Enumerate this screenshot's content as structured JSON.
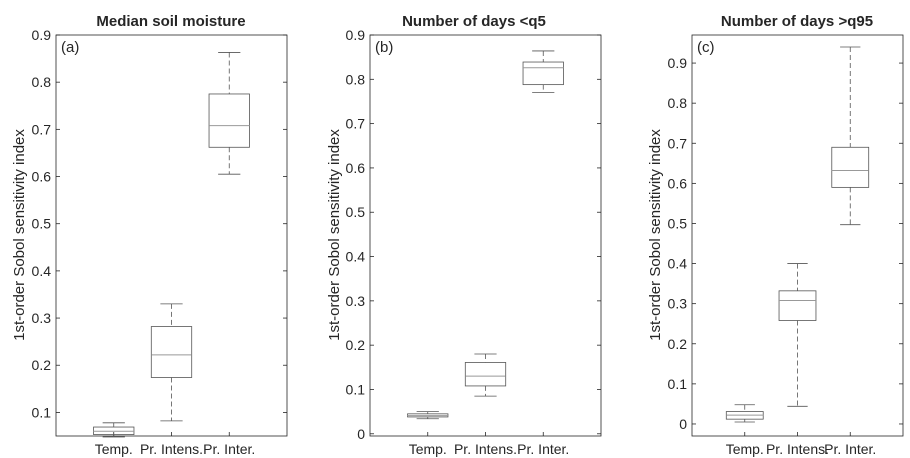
{
  "colors": {
    "axis": "#262626",
    "box": "#555555",
    "median": "#999999",
    "background": "#ffffff"
  },
  "chart_data": [
    {
      "type": "box",
      "title": "Median soil moisture",
      "panel_label": "(a)",
      "ylabel": "1st-order Sobol sensitivity index",
      "xlabel": "",
      "categories": [
        "Temp.",
        "Pr. Intens.",
        "Pr. Inter."
      ],
      "ylim": [
        0.05,
        0.9
      ],
      "yticks": [
        0.1,
        0.2,
        0.3,
        0.4,
        0.5,
        0.6,
        0.7,
        0.8,
        0.9
      ],
      "ytick_labels": [
        "0.1",
        "0.2",
        "0.3",
        "0.4",
        "0.5",
        "0.6",
        "0.7",
        "0.8",
        "0.9"
      ],
      "boxes": [
        {
          "min": 0.048,
          "q1": 0.053,
          "median": 0.06,
          "q3": 0.069,
          "max": 0.078
        },
        {
          "min": 0.082,
          "q1": 0.174,
          "median": 0.222,
          "q3": 0.282,
          "max": 0.33
        },
        {
          "min": 0.605,
          "q1": 0.662,
          "median": 0.708,
          "q3": 0.775,
          "max": 0.863
        }
      ]
    },
    {
      "type": "box",
      "title": "Number of days <q5",
      "panel_label": "(b)",
      "ylabel": "1st-order Sobol sensitivity index",
      "xlabel": "",
      "categories": [
        "Temp.",
        "Pr. Intens.",
        "Pr. Inter."
      ],
      "ylim": [
        -0.005,
        0.9
      ],
      "yticks": [
        0,
        0.1,
        0.2,
        0.3,
        0.4,
        0.5,
        0.6,
        0.7,
        0.8,
        0.9
      ],
      "ytick_labels": [
        "0",
        "0.1",
        "0.2",
        "0.3",
        "0.4",
        "0.5",
        "0.6",
        "0.7",
        "0.8",
        "0.9"
      ],
      "boxes": [
        {
          "min": 0.034,
          "q1": 0.038,
          "median": 0.041,
          "q3": 0.045,
          "max": 0.05
        },
        {
          "min": 0.085,
          "q1": 0.108,
          "median": 0.13,
          "q3": 0.161,
          "max": 0.18
        },
        {
          "min": 0.77,
          "q1": 0.788,
          "median": 0.826,
          "q3": 0.839,
          "max": 0.864
        }
      ]
    },
    {
      "type": "box",
      "title": "Number of days >q95",
      "panel_label": "(c)",
      "ylabel": "1st-order Sobol sensitivity index",
      "xlabel": "",
      "categories": [
        "Temp.",
        "Pr. Intens.",
        "Pr. Inter."
      ],
      "ylim": [
        -0.03,
        0.97
      ],
      "yticks": [
        0,
        0.1,
        0.2,
        0.3,
        0.4,
        0.5,
        0.6,
        0.7,
        0.8,
        0.9
      ],
      "ytick_labels": [
        "0",
        "0.1",
        "0.2",
        "0.3",
        "0.4",
        "0.5",
        "0.6",
        "0.7",
        "0.8",
        "0.9"
      ],
      "boxes": [
        {
          "min": 0.005,
          "q1": 0.012,
          "median": 0.022,
          "q3": 0.031,
          "max": 0.048
        },
        {
          "min": 0.044,
          "q1": 0.258,
          "median": 0.308,
          "q3": 0.332,
          "max": 0.4
        },
        {
          "min": 0.497,
          "q1": 0.59,
          "median": 0.632,
          "q3": 0.69,
          "max": 0.94
        }
      ]
    }
  ]
}
